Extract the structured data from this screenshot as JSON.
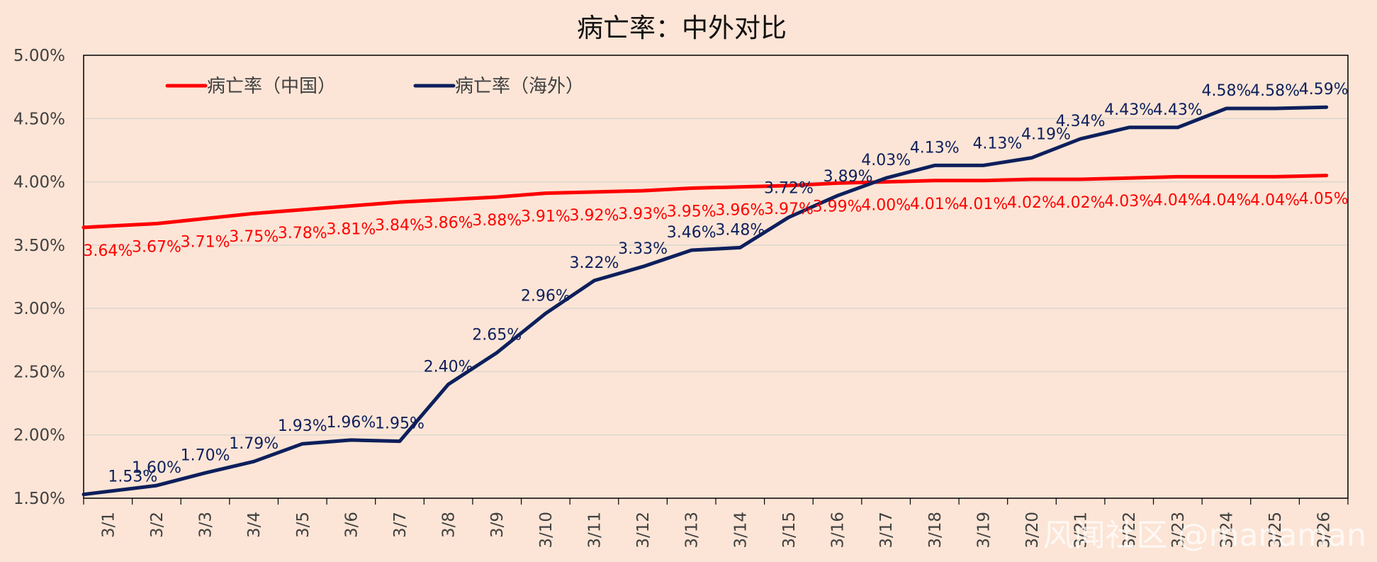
{
  "chart_data": {
    "type": "line",
    "title": "病亡率：中外对比",
    "xlabel": "",
    "ylabel": "",
    "categories": [
      "3/1",
      "3/2",
      "3/3",
      "3/4",
      "3/5",
      "3/6",
      "3/7",
      "3/8",
      "3/9",
      "3/10",
      "3/11",
      "3/12",
      "3/13",
      "3/14",
      "3/15",
      "3/16",
      "3/17",
      "3/18",
      "3/19",
      "3/20",
      "3/21",
      "3/22",
      "3/23",
      "3/24",
      "3/25",
      "3/26"
    ],
    "ylim": [
      1.5,
      5.0
    ],
    "yticks": [
      "1.50%",
      "2.00%",
      "2.50%",
      "3.00%",
      "3.50%",
      "4.00%",
      "4.50%",
      "5.00%"
    ],
    "grid": "horizontal",
    "legend_position": "top-left",
    "series": [
      {
        "name": "病亡率（中国）",
        "color": "#ff0000",
        "values": [
          3.64,
          3.67,
          3.71,
          3.75,
          3.78,
          3.81,
          3.84,
          3.86,
          3.88,
          3.91,
          3.92,
          3.93,
          3.95,
          3.96,
          3.97,
          3.99,
          4.0,
          4.01,
          4.01,
          4.02,
          4.02,
          4.03,
          4.04,
          4.04,
          4.04,
          4.05
        ],
        "labels": [
          "3.64%",
          "3.67%",
          "3.71%",
          "3.75%",
          "3.78%",
          "3.81%",
          "3.84%",
          "3.86%",
          "3.88%",
          "3.91%",
          "3.92%",
          "3.93%",
          "3.95%",
          "3.96%",
          "3.97%",
          "3.99%",
          "4.00%",
          "4.01%",
          "4.01%",
          "4.02%",
          "4.02%",
          "4.03%",
          "4.04%",
          "4.04%",
          "4.04%",
          "4.05%"
        ]
      },
      {
        "name": "病亡率（海外）",
        "color": "#0d1f5c",
        "values": [
          1.53,
          1.6,
          1.7,
          1.79,
          1.93,
          1.96,
          1.95,
          2.4,
          2.65,
          2.96,
          3.22,
          3.33,
          3.46,
          3.48,
          3.72,
          3.89,
          4.03,
          4.13,
          4.13,
          4.19,
          4.34,
          4.43,
          4.43,
          4.58,
          4.58,
          4.59
        ],
        "labels": [
          "1.53%",
          "1.60%",
          "1.70%",
          "1.79%",
          "1.93%",
          "1.96%",
          "1.95%",
          "2.40%",
          "2.65%",
          "2.96%",
          "3.22%",
          "3.33%",
          "3.46%",
          "3.48%",
          "3.72%",
          "3.89%",
          "4.03%",
          "4.13%",
          "4.13%",
          "4.19%",
          "4.34%",
          "4.43%",
          "4.43%",
          "4.58%",
          "4.58%",
          "4.59%"
        ]
      }
    ]
  },
  "watermark": "风闻社区 @manaman"
}
